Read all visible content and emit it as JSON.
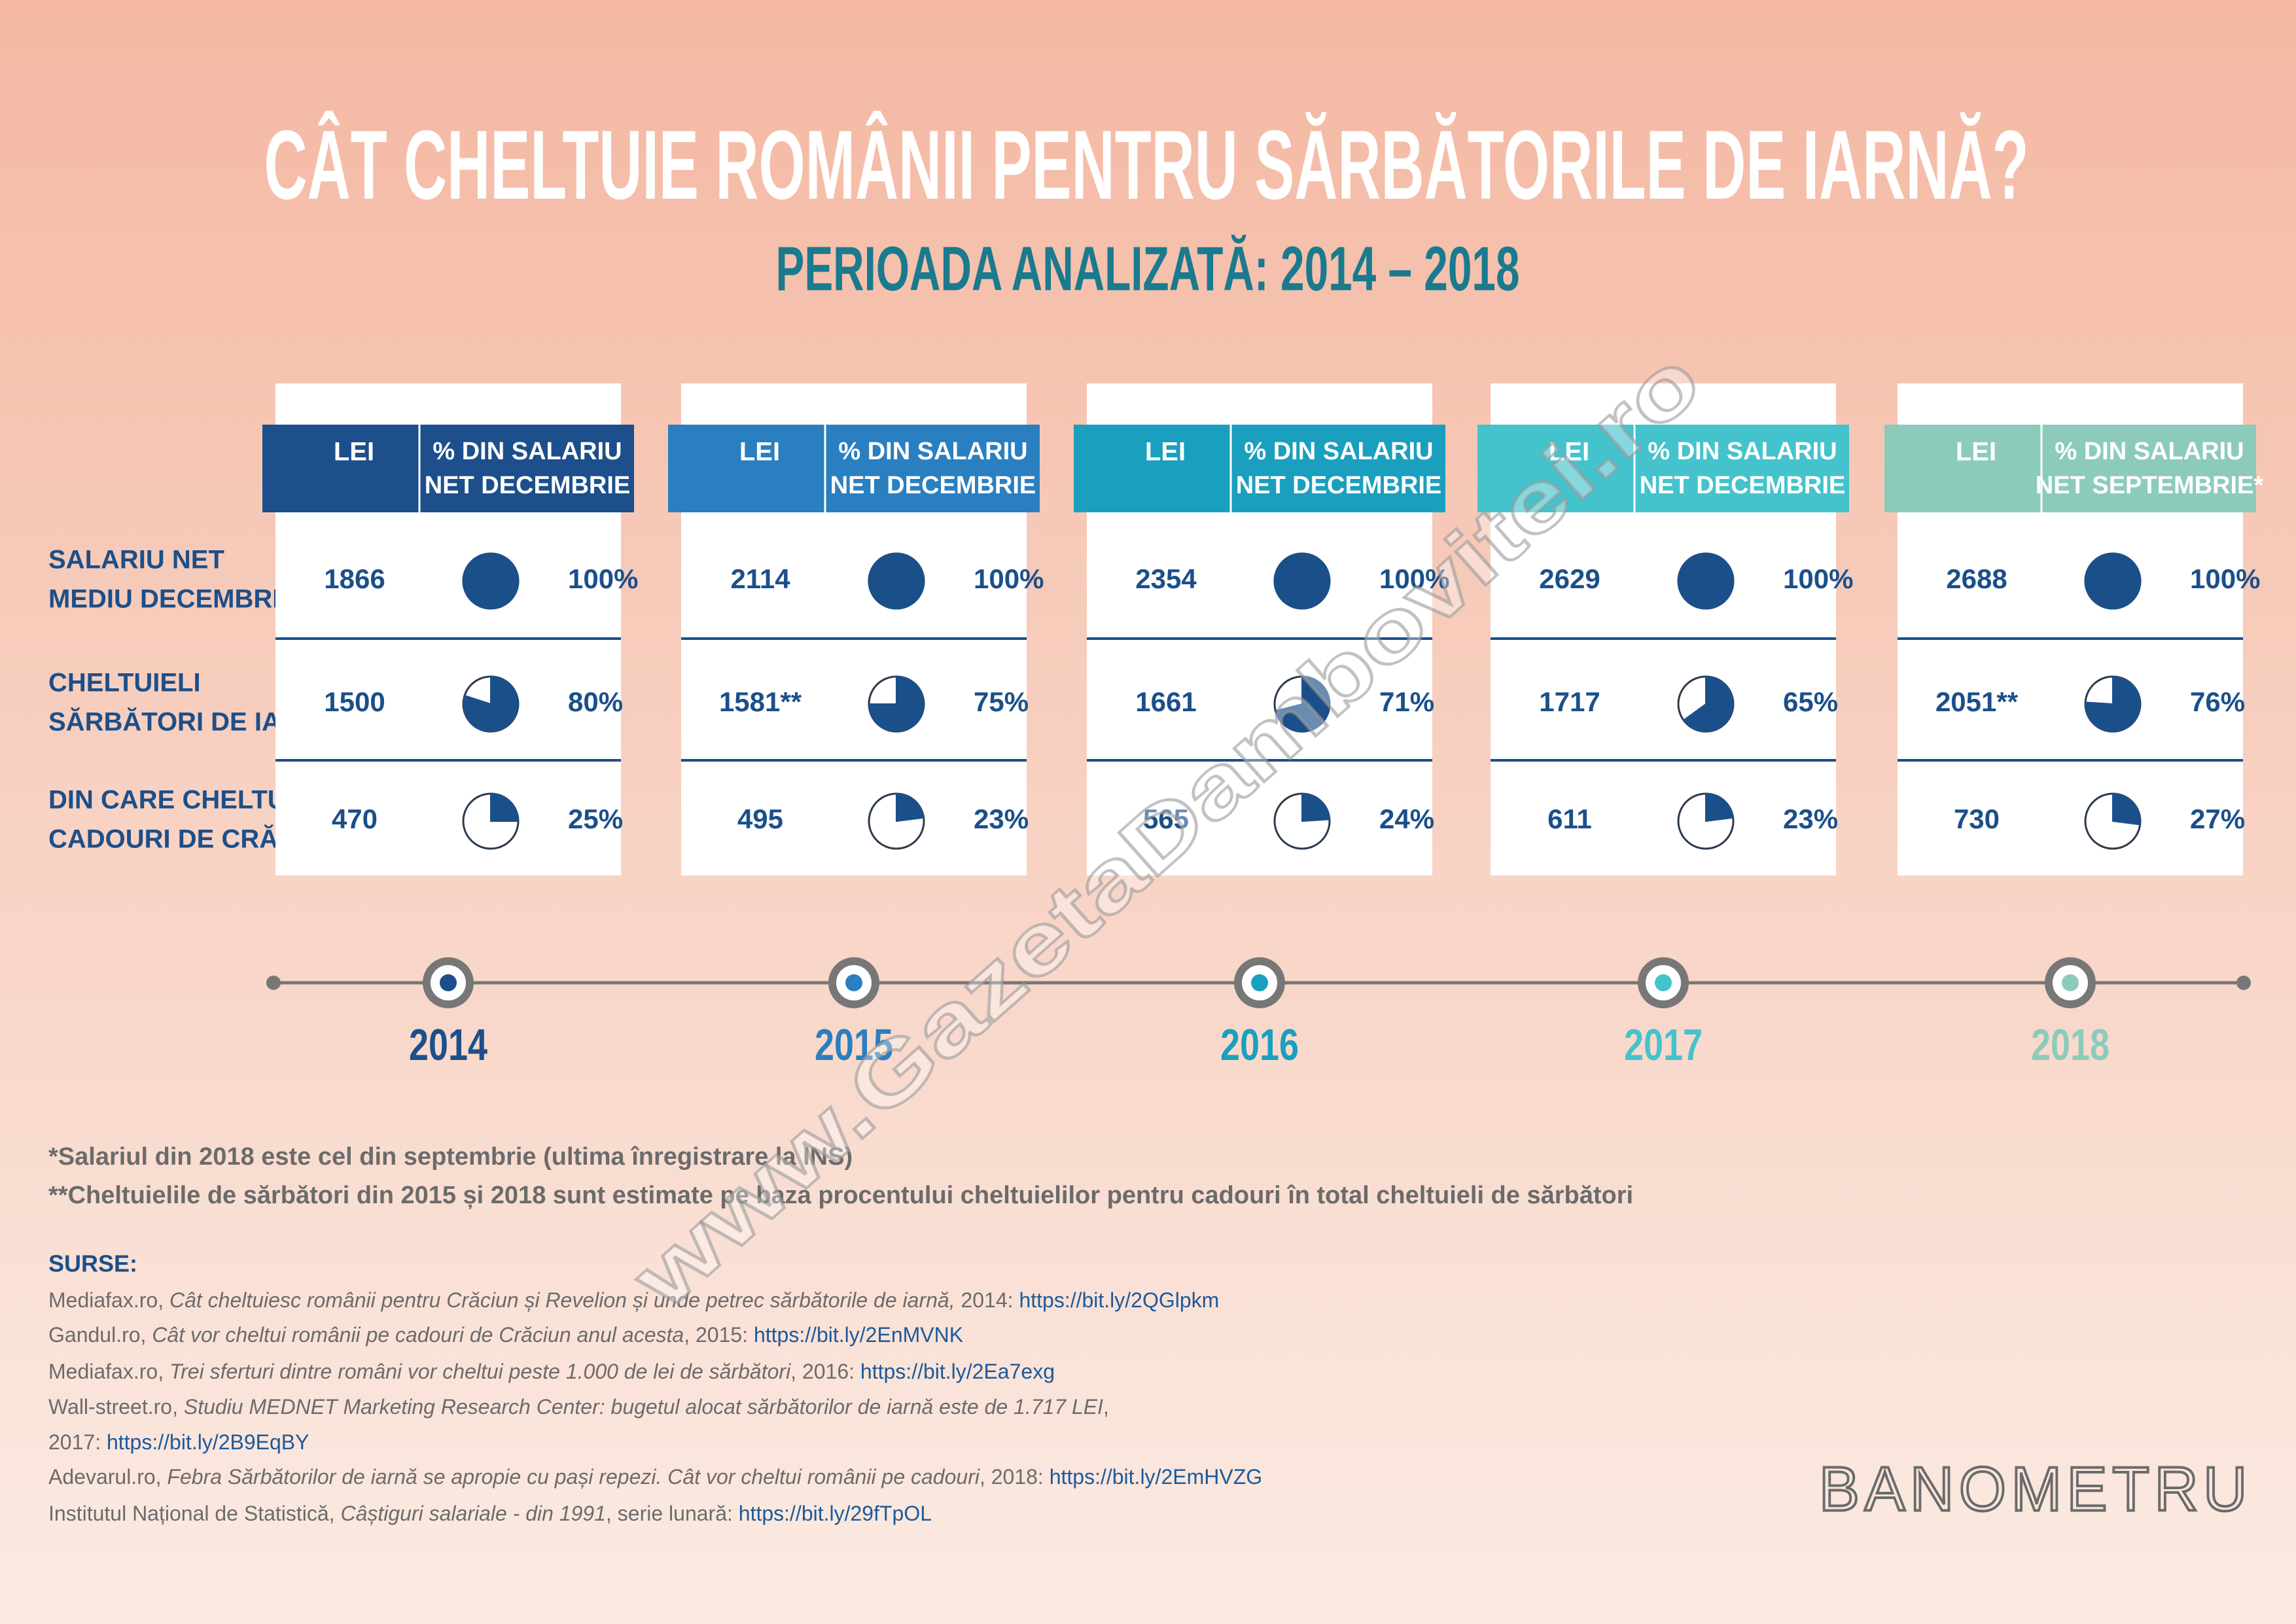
{
  "title": "CÂT CHELTUIE ROMÂNII PENTRU SĂRBĂTORILE DE IARNĂ?",
  "subtitle": "PERIOADA ANALIZATĂ: 2014 – 2018",
  "row_labels": [
    [
      "SALARIU NET",
      "MEDIU DECEMBRIE"
    ],
    [
      "CHELTUIELI",
      "SĂRBĂTORI DE IARNĂ"
    ],
    [
      "DIN CARE CHELTUIELI",
      "CADOURI DE CRĂCIUN"
    ]
  ],
  "columns": [
    {
      "year": "2014",
      "color": "#1c4f8b",
      "lei_header": "LEI",
      "pct_header": [
        "% DIN SALARIU",
        "NET DECEMBRIE"
      ],
      "lei": [
        "1866",
        "1500",
        "470"
      ],
      "values": [
        100,
        80,
        25
      ],
      "value_labels": [
        "100%",
        "80%",
        "25%"
      ]
    },
    {
      "year": "2015",
      "color": "#2a7fc0",
      "lei_header": "LEI",
      "pct_header": [
        "% DIN SALARIU",
        "NET DECEMBRIE"
      ],
      "lei": [
        "2114",
        "1581**",
        "495"
      ],
      "values": [
        100,
        75,
        23
      ],
      "value_labels": [
        "100%",
        "75%",
        "23%"
      ]
    },
    {
      "year": "2016",
      "color": "#1a9fbe",
      "lei_header": "LEI",
      "pct_header": [
        "% DIN SALARIU",
        "NET DECEMBRIE"
      ],
      "lei": [
        "2354",
        "1661",
        "565"
      ],
      "values": [
        100,
        71,
        24
      ],
      "value_labels": [
        "100%",
        "71%",
        "24%"
      ]
    },
    {
      "year": "2017",
      "color": "#45c3cc",
      "lei_header": "LEI",
      "pct_header": [
        "% DIN SALARIU",
        "NET DECEMBRIE"
      ],
      "lei": [
        "2629",
        "1717",
        "611"
      ],
      "values": [
        100,
        65,
        23
      ],
      "value_labels": [
        "100%",
        "65%",
        "23%"
      ]
    },
    {
      "year": "2018",
      "color": "#8ccbbb",
      "lei_header": "LEI",
      "pct_header": [
        "% DIN SALARIU",
        "NET SEPTEMBRIE*"
      ],
      "lei": [
        "2688",
        "2051**",
        "730"
      ],
      "values": [
        100,
        76,
        27
      ],
      "value_labels": [
        "100%",
        "76%",
        "27%"
      ]
    }
  ],
  "footnotes": [
    "*Salariul din 2018 este cel din septembrie (ultima înregistrare la INS)",
    "**Cheltuielile de sărbători din 2015 și 2018 sunt estimate pe baza procentului cheltuielilor pentru cadouri în total cheltuieli de sărbători"
  ],
  "sources_heading": "SURSE:",
  "sources": [
    [
      {
        "text": "Mediafax.ro, ",
        "style": "normal"
      },
      {
        "text": "Cât cheltuiesc românii pentru Crăciun și Revelion și unde petrec sărbătorile de iarnă,",
        "style": "italic"
      },
      {
        "text": " 2014: ",
        "style": "normal"
      },
      {
        "text": "https://bit.ly/2QGlpkm",
        "style": "link"
      }
    ],
    [
      {
        "text": "Gandul.ro, ",
        "style": "normal"
      },
      {
        "text": "Cât vor cheltui românii pe cadouri de Crăciun anul acesta",
        "style": "italic"
      },
      {
        "text": ", 2015: ",
        "style": "normal"
      },
      {
        "text": "https://bit.ly/2EnMVNK",
        "style": "link"
      }
    ],
    [
      {
        "text": "Mediafax.ro, ",
        "style": "normal"
      },
      {
        "text": "Trei sferturi dintre români vor cheltui peste 1.000 de lei de sărbători",
        "style": "italic"
      },
      {
        "text": ", 2016: ",
        "style": "normal"
      },
      {
        "text": "https://bit.ly/2Ea7exg",
        "style": "link"
      }
    ],
    [
      {
        "text": "Wall-street.ro, ",
        "style": "normal"
      },
      {
        "text": "Studiu MEDNET Marketing Research Center: bugetul alocat sărbătorilor de iarnă este de 1.717 LEI",
        "style": "italic"
      },
      {
        "text": ",",
        "style": "normal"
      }
    ],
    [
      {
        "text": "2017: ",
        "style": "normal"
      },
      {
        "text": "https://bit.ly/2B9EqBY",
        "style": "link"
      }
    ],
    [
      {
        "text": "Adevarul.ro, ",
        "style": "normal"
      },
      {
        "text": "Febra Sărbătorilor de iarnă se apropie cu pași repezi. Cât vor cheltui românii pe cadouri",
        "style": "italic"
      },
      {
        "text": ", 2018: ",
        "style": "normal"
      },
      {
        "text": "https://bit.ly/2EmHVZG",
        "style": "link"
      }
    ],
    [
      {
        "text": "Institutul Național de Statistică, ",
        "style": "normal"
      },
      {
        "text": "Câștiguri salariale - din 1991",
        "style": "italic"
      },
      {
        "text": ", serie lunară: ",
        "style": "normal"
      },
      {
        "text": "https://bit.ly/29fTpOL",
        "style": "link"
      }
    ]
  ],
  "logo": "BANOMETRU",
  "watermark": "www.GazetaDambovitei.ro"
}
